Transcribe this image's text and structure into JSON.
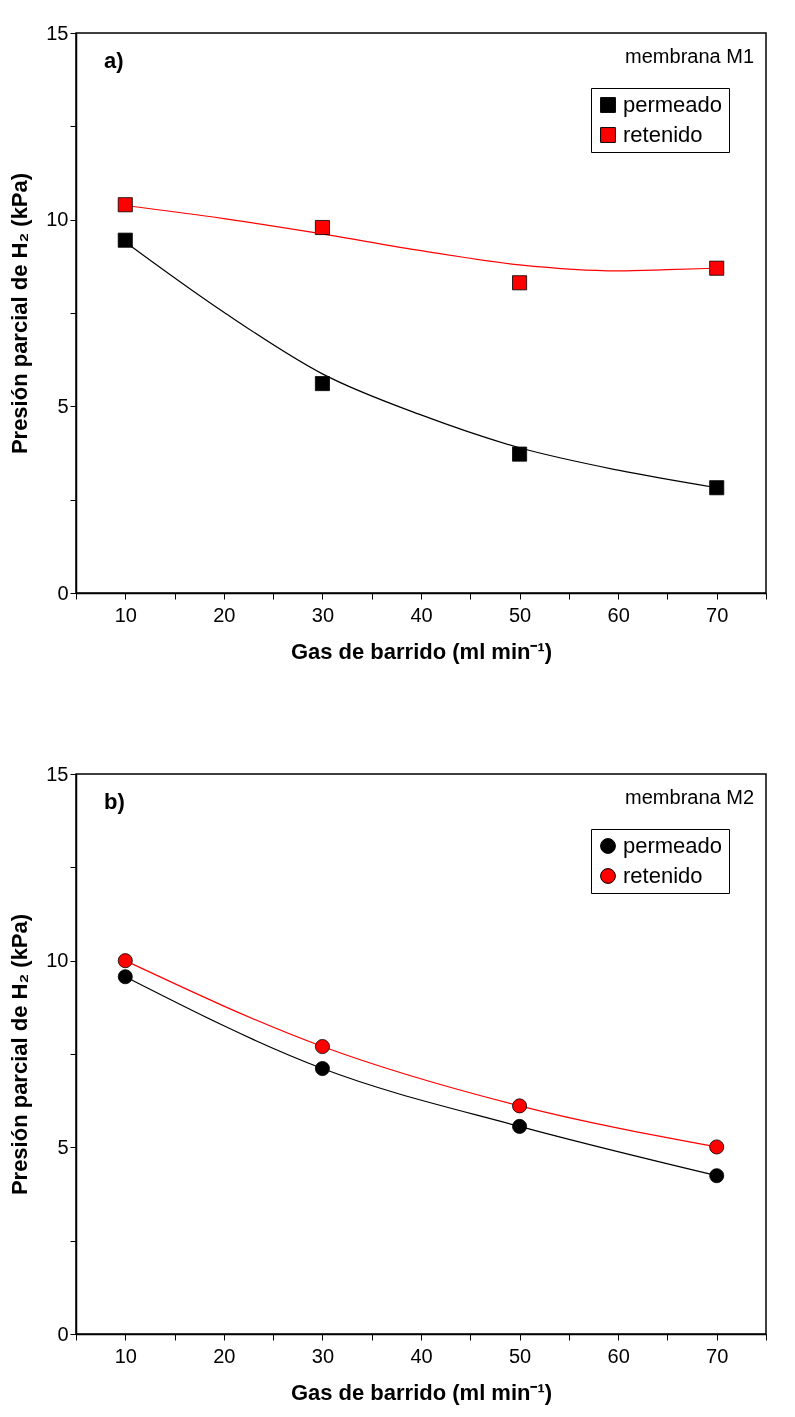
{
  "chart_data": [
    {
      "type": "scatter",
      "xlabel": "Gas de barrido (ml min⁻¹)",
      "ylabel": "Presión parcial de H₂ (kPa)",
      "annotations": [
        "a)",
        "membrana M1"
      ],
      "xlim": [
        5,
        75
      ],
      "ylim": [
        0,
        15
      ],
      "xticks": [
        {
          "value": 5,
          "label": null
        },
        10,
        {
          "value": 15,
          "label": null
        },
        20,
        {
          "value": 25,
          "label": null
        },
        30,
        {
          "value": 35,
          "label": null
        },
        40,
        {
          "value": 45,
          "label": null
        },
        50,
        {
          "value": 55,
          "label": null
        },
        60,
        {
          "value": 65,
          "label": null
        },
        70,
        {
          "value": 75,
          "label": null
        }
      ],
      "yticks": [
        0,
        {
          "value": 2.5,
          "label": null
        },
        5,
        {
          "value": 7.5,
          "label": null
        },
        10,
        {
          "value": 12.5,
          "label": null
        },
        15
      ],
      "legend": "top right",
      "marker": "square",
      "grid": false,
      "series": [
        {
          "name": "permeado",
          "type": "scatter",
          "color": "#000000",
          "x": [
            10,
            30,
            50,
            70
          ],
          "values": [
            9.45,
            5.61,
            3.72,
            2.82
          ]
        },
        {
          "name": "retenido",
          "type": "scatter",
          "color": "#ff0000",
          "x": [
            10,
            30,
            50,
            70
          ],
          "values": [
            10.4,
            9.79,
            8.31,
            8.7
          ]
        },
        {
          "type": "line",
          "marker": "none",
          "color": "#000000",
          "x": [
            10,
            20,
            30,
            40,
            50,
            60,
            70
          ],
          "values": [
            9.4,
            7.52,
            5.87,
            4.77,
            3.89,
            3.29,
            2.82
          ]
        },
        {
          "type": "line",
          "marker": "none",
          "color": "#ff0000",
          "x": [
            10,
            20,
            30,
            40,
            50,
            60,
            65,
            70
          ],
          "values": [
            10.38,
            10.03,
            9.62,
            9.17,
            8.79,
            8.63,
            8.66,
            8.7
          ]
        }
      ]
    },
    {
      "type": "line",
      "xlabel": "Gas de barrido (ml min⁻¹)",
      "ylabel": "Presión parcial de H₂ (kPa)",
      "annotations": [
        "b)",
        "membrana M2"
      ],
      "xlim": [
        5,
        75
      ],
      "ylim": [
        0,
        15
      ],
      "xticks": [
        {
          "value": 5,
          "label": null
        },
        10,
        {
          "value": 15,
          "label": null
        },
        20,
        {
          "value": 25,
          "label": null
        },
        30,
        {
          "value": 35,
          "label": null
        },
        40,
        {
          "value": 45,
          "label": null
        },
        50,
        {
          "value": 55,
          "label": null
        },
        60,
        {
          "value": 65,
          "label": null
        },
        70,
        {
          "value": 75,
          "label": null
        }
      ],
      "yticks": [
        0,
        {
          "value": 2.5,
          "label": null
        },
        5,
        {
          "value": 7.5,
          "label": null
        },
        10,
        {
          "value": 12.5,
          "label": null
        },
        15
      ],
      "legend": "top right",
      "marker": "circle",
      "grid": false,
      "series": [
        {
          "name": "permeado",
          "color": "#000000",
          "x": [
            10,
            30,
            50,
            70
          ],
          "values": [
            9.57,
            7.11,
            5.56,
            4.24
          ]
        },
        {
          "name": "retenido",
          "color": "#ff0000",
          "x": [
            10,
            30,
            50,
            70
          ],
          "values": [
            10.0,
            7.7,
            6.11,
            5.01
          ]
        }
      ]
    }
  ]
}
